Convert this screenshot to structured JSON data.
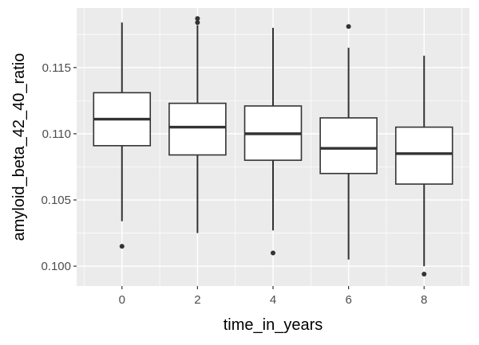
{
  "chart_data": {
    "type": "boxplot",
    "xlabel": "time_in_years",
    "ylabel": "amyloid_beta_42_40_ratio",
    "x_ticks": [
      "0",
      "2",
      "4",
      "6",
      "8"
    ],
    "y_ticks": [
      "0.100",
      "0.105",
      "0.110",
      "0.115"
    ],
    "xlim": [
      -1.2,
      9.2
    ],
    "ylim": [
      0.0985,
      0.1195
    ],
    "grid": true,
    "panel_background": "#ebebeb",
    "grid_color": "#ffffff",
    "box_fill": "#ffffff",
    "box_stroke": "#333333",
    "boxes": [
      {
        "x": 0,
        "q1": 0.1091,
        "median": 0.1111,
        "q3": 0.1131,
        "whisker_low": 0.1034,
        "whisker_high": 0.1184,
        "outliers": [
          0.1015
        ]
      },
      {
        "x": 2,
        "q1": 0.1084,
        "median": 0.1105,
        "q3": 0.1123,
        "whisker_low": 0.1025,
        "whisker_high": 0.1182,
        "outliers": [
          0.1187,
          0.1184
        ]
      },
      {
        "x": 4,
        "q1": 0.108,
        "median": 0.11,
        "q3": 0.1121,
        "whisker_low": 0.1027,
        "whisker_high": 0.118,
        "outliers": [
          0.101
        ]
      },
      {
        "x": 6,
        "q1": 0.107,
        "median": 0.1089,
        "q3": 0.1112,
        "whisker_low": 0.1005,
        "whisker_high": 0.1165,
        "outliers": [
          0.1181
        ]
      },
      {
        "x": 8,
        "q1": 0.1062,
        "median": 0.1085,
        "q3": 0.1105,
        "whisker_low": 0.1,
        "whisker_high": 0.1159,
        "outliers": [
          0.0994
        ]
      }
    ]
  }
}
